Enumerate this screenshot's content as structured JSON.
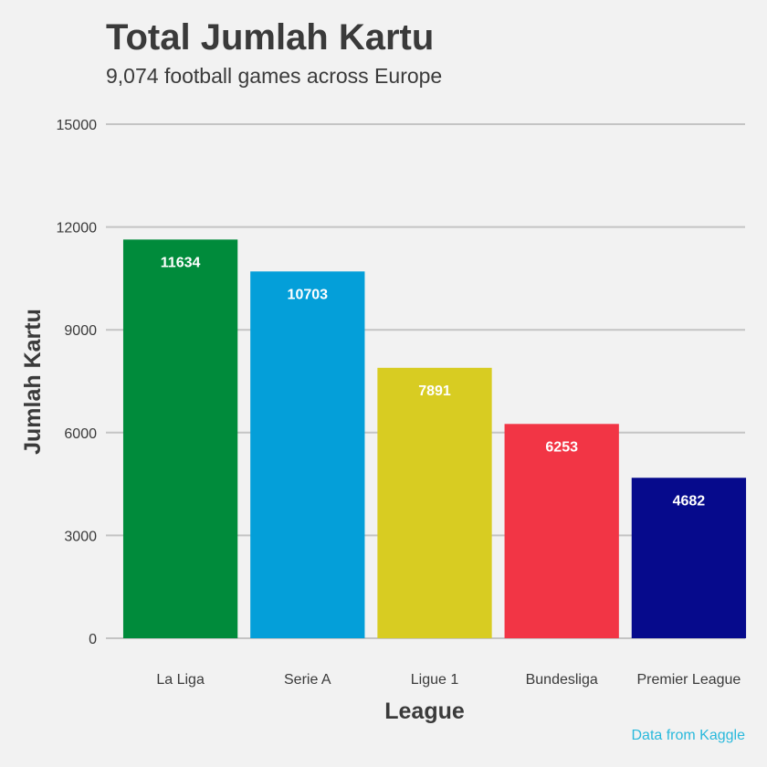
{
  "chart_data": {
    "type": "bar",
    "title": "Total Jumlah Kartu",
    "subtitle": "9,074 football games across Europe",
    "xlabel": "League",
    "ylabel": "Jumlah Kartu",
    "categories": [
      "La Liga",
      "Serie A",
      "Ligue 1",
      "Bundesliga",
      "Premier League"
    ],
    "values": [
      11634,
      10703,
      7891,
      6253,
      4682
    ],
    "data_labels": [
      "11634",
      "10703",
      "7891",
      "6253",
      "4682"
    ],
    "colors": [
      "#008b3b",
      "#049fd9",
      "#d8cc22",
      "#f23545",
      "#060a8c"
    ],
    "ylim": [
      0,
      15000
    ],
    "yticks": [
      0,
      3000,
      6000,
      9000,
      12000,
      15000
    ],
    "ytick_labels": [
      "0",
      "3000",
      "6000",
      "9000",
      "12000",
      "15000"
    ],
    "grid": "horizontal",
    "legend": "none",
    "caption": "Data from Kaggle",
    "caption_color": "#29b9dc",
    "background_color": "#f2f2f2"
  }
}
